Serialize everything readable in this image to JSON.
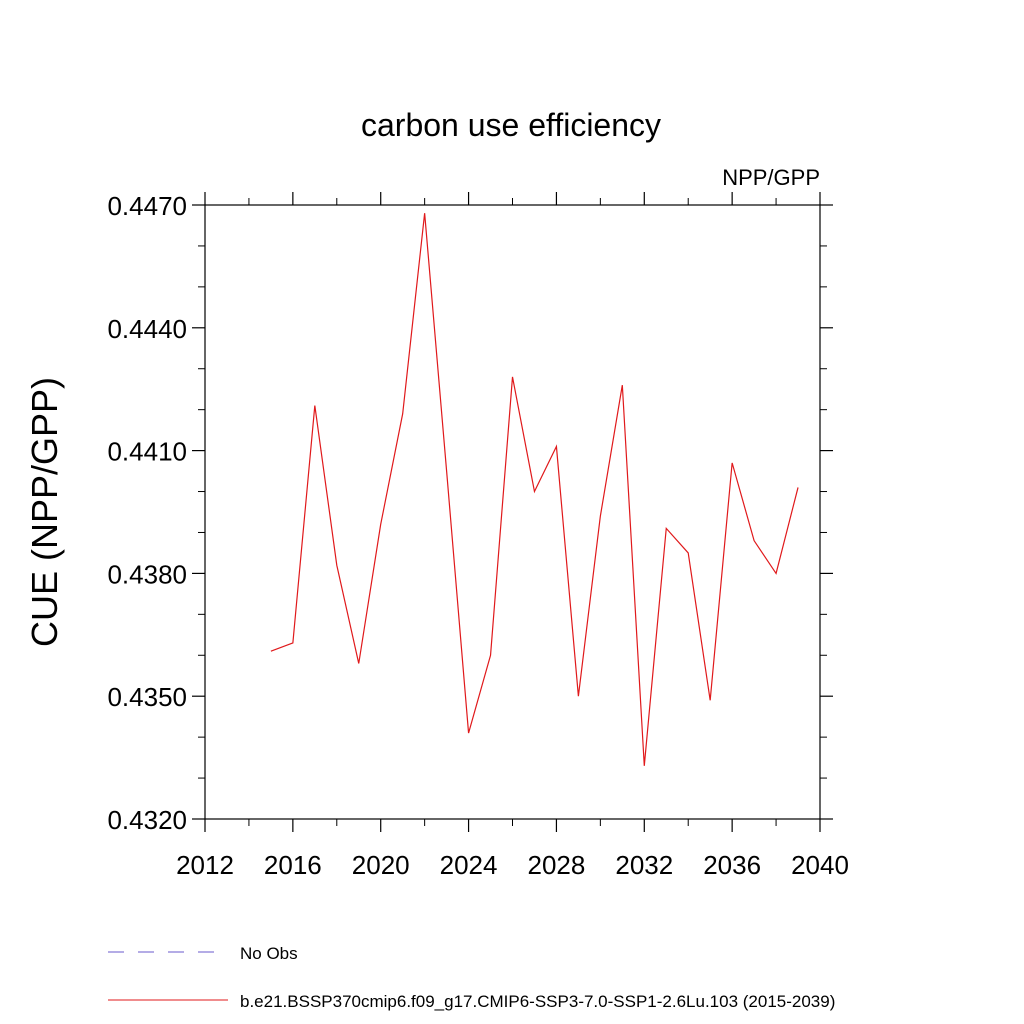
{
  "chart_data": {
    "type": "line",
    "title": "carbon use efficiency",
    "subtitle": "NPP/GPP",
    "ylabel": "CUE  (NPP/GPP)",
    "xlabel": "",
    "xlim": [
      2012,
      2040
    ],
    "ylim": [
      0.432,
      0.447
    ],
    "xticks": [
      2012,
      2016,
      2020,
      2024,
      2028,
      2032,
      2036,
      2040
    ],
    "xtick_labels": [
      "2012",
      "2016",
      "2020",
      "2024",
      "2028",
      "2032",
      "2036",
      "2040"
    ],
    "yticks": [
      0.432,
      0.435,
      0.438,
      0.441,
      0.444,
      0.447
    ],
    "ytick_labels": [
      "0.4320",
      "0.4350",
      "0.4380",
      "0.4410",
      "0.4440",
      "0.4470"
    ],
    "grid": false,
    "legend_position": "bottom",
    "x": [
      2015,
      2016,
      2017,
      2018,
      2019,
      2020,
      2021,
      2022,
      2023,
      2024,
      2025,
      2026,
      2027,
      2028,
      2029,
      2030,
      2031,
      2032,
      2033,
      2034,
      2035,
      2036,
      2037,
      2038,
      2039
    ],
    "series": [
      {
        "name": "b.e21.BSSP370cmip6.f09_g17.CMIP6-SSP3-7.0-SSP1-2.6Lu.103 (2015-2039)",
        "color": "#e0191b",
        "style": "solid",
        "values": [
          0.4361,
          0.4363,
          0.4421,
          0.4382,
          0.4358,
          0.4392,
          0.4419,
          0.4468,
          0.4405,
          0.4341,
          0.436,
          0.4428,
          0.44,
          0.4411,
          0.435,
          0.4394,
          0.4426,
          0.4333,
          0.4391,
          0.4385,
          0.4349,
          0.4407,
          0.4388,
          0.438,
          0.4401
        ]
      }
    ],
    "legend": [
      {
        "label": "No Obs",
        "color": "#6a5acd",
        "style": "dashed"
      },
      {
        "label": "b.e21.BSSP370cmip6.f09_g17.CMIP6-SSP3-7.0-SSP1-2.6Lu.103 (2015-2039)",
        "color": "#e0191b",
        "style": "solid"
      }
    ]
  }
}
